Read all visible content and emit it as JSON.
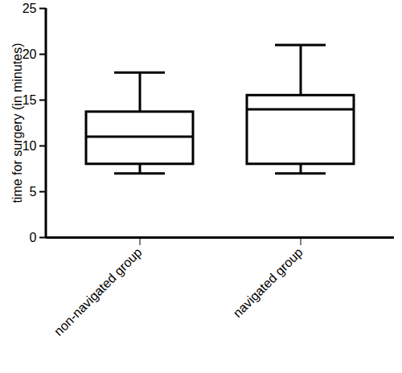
{
  "chart_data": {
    "type": "box",
    "ylabel": "time for surgery (in minutes)",
    "categories": [
      "non-navigated group",
      "navigated group"
    ],
    "min": [
      7,
      7
    ],
    "q1": [
      8,
      8
    ],
    "median": [
      11,
      14
    ],
    "q3": [
      13.7,
      15.5
    ],
    "max": [
      18,
      21
    ],
    "color": "#000000",
    "ylim": [
      0,
      25
    ],
    "yticks": [
      0,
      5,
      10,
      15,
      20,
      25
    ],
    "grid": false
  }
}
